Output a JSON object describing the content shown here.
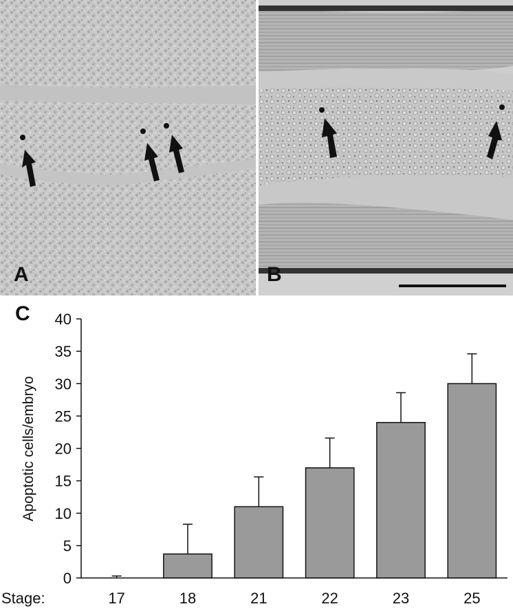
{
  "panels": {
    "a_label": "A",
    "b_label": "B",
    "c_label": "C"
  },
  "chart_data": {
    "type": "bar",
    "x_prefix": "Stage:",
    "categories": [
      "17",
      "18",
      "21",
      "22",
      "23",
      "25"
    ],
    "values": [
      0,
      3.7,
      11,
      17,
      24,
      30
    ],
    "errors": [
      0.3,
      4.6,
      4.6,
      4.6,
      4.6,
      4.6
    ],
    "ylabel": "Apoptotic cells/embryo",
    "xlabel": "",
    "ylim": [
      0,
      40
    ],
    "yticks": [
      "0",
      "5",
      "10",
      "15",
      "20",
      "25",
      "30",
      "35",
      "40"
    ],
    "bar_color": "#9a9a9a",
    "grid": false
  }
}
